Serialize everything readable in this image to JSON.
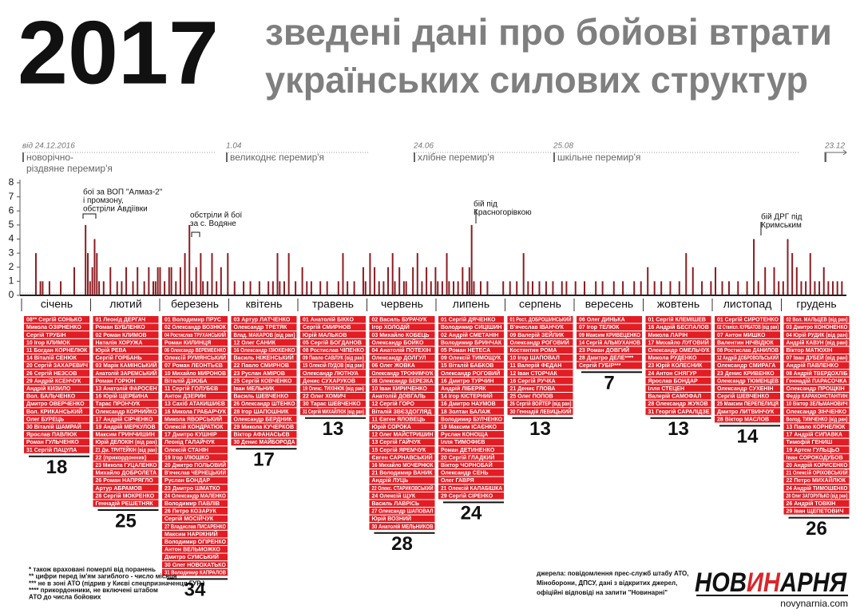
{
  "title": "2017",
  "subtitle": [
    "зведені дані про бойові втрати",
    "українських силових структур"
  ],
  "truces": [
    {
      "date": "від 24.12.2016",
      "label": [
        "новорічно-",
        "різдвяне перемир'я"
      ]
    },
    {
      "date": "1.04",
      "label": [
        "великоднє перемир'я"
      ]
    },
    {
      "date": "24.06",
      "label": [
        "хлібне перемир'я"
      ]
    },
    {
      "date": "25.08",
      "label": [
        "шкільне перемир'я"
      ]
    },
    {
      "date": "23.12",
      "label": []
    }
  ],
  "annotations": [
    [
      "бої за ВОП \"Алмаз-2\"",
      "і промзону,",
      "обстріли Авдіївки"
    ],
    [
      "обстріли й бої",
      "за с. Водяне"
    ],
    [
      "бій під",
      "Красногорівкою"
    ],
    [
      "бій ДРГ під",
      "Кримським"
    ]
  ],
  "chart_data": {
    "type": "bar",
    "color": "#8b1c22",
    "x": [
      7,
      9,
      10,
      13,
      18,
      24,
      29,
      30,
      31,
      32,
      33,
      34,
      35,
      37,
      40,
      43,
      45,
      47,
      50,
      52,
      55,
      57,
      59,
      60,
      61,
      62,
      64,
      66,
      67,
      69,
      71,
      73,
      75,
      76,
      78,
      80,
      81,
      83,
      85,
      87,
      89,
      92,
      95,
      99,
      102,
      106,
      110,
      112,
      114,
      115,
      117,
      119,
      122,
      125,
      127,
      129,
      133,
      136,
      141,
      143,
      145,
      148,
      152,
      153,
      155,
      157,
      159,
      161,
      163,
      165,
      166,
      168,
      170,
      171,
      174,
      176,
      178,
      180,
      182,
      184,
      185,
      187,
      189,
      190,
      192,
      194,
      196,
      198,
      199,
      200,
      201,
      204,
      207,
      214,
      217,
      220,
      223,
      225,
      227,
      230,
      233,
      236,
      240,
      242,
      246,
      250,
      255,
      258,
      263,
      267,
      272,
      275,
      278,
      281,
      284,
      288,
      292,
      295,
      298,
      302,
      306,
      308,
      311,
      314,
      318,
      322,
      325,
      327,
      330,
      334,
      336,
      338,
      340,
      342,
      344,
      346,
      348,
      350,
      352,
      354,
      356,
      358,
      360,
      362,
      364
    ],
    "values": [
      3,
      1,
      1,
      1,
      1,
      2,
      5,
      3,
      1,
      2,
      4,
      3,
      1,
      1,
      2,
      1,
      1,
      2,
      1,
      2,
      1,
      2,
      1,
      1,
      2,
      2,
      1,
      2,
      2,
      1,
      2,
      3,
      5,
      1,
      2,
      3,
      1,
      1,
      3,
      1,
      2,
      3,
      1,
      1,
      1,
      1,
      1,
      1,
      3,
      1,
      1,
      3,
      1,
      2,
      1,
      1,
      1,
      1,
      1,
      3,
      1,
      1,
      2,
      1,
      3,
      2,
      1,
      1,
      2,
      3,
      1,
      2,
      1,
      1,
      2,
      3,
      1,
      2,
      1,
      2,
      1,
      1,
      3,
      1,
      1,
      1,
      2,
      1,
      2,
      5,
      1,
      1,
      1,
      1,
      1,
      1,
      3,
      1,
      1,
      1,
      1,
      1,
      1,
      1,
      1,
      1,
      1,
      1,
      1,
      1,
      1,
      1,
      2,
      1,
      1,
      1,
      1,
      3,
      2,
      1,
      1,
      2,
      1,
      1,
      1,
      1,
      4,
      1,
      2,
      2,
      1,
      1,
      4,
      3,
      2,
      1,
      1,
      3,
      1,
      1,
      2,
      1,
      1,
      1,
      1
    ],
    "xlim": [
      1,
      366
    ],
    "ylim": [
      0,
      8
    ],
    "yticks": [
      0,
      1,
      2,
      3,
      4,
      5,
      6,
      7,
      8
    ]
  },
  "months": [
    {
      "name": "січень",
      "total": 18,
      "names": [
        "08** Сергій СОНЬКО",
        "Микола ОЗІРНЕНКО",
        "Сергій ТРУБІН",
        "10 Ігор КЛИМОК",
        "11 Богдан КОРНЕЛЮК",
        "14 Віталій СЕНЮК",
        "20 Сергій ЗАХАРЕВИЧ",
        "26 Сергій НЕЗСОВ",
        "29 Андрій КСЕНЧУК",
        "Андрій КИЗИЛО",
        "Вол. БАЛЬЧЕНКО",
        "Дмитро ОВЕРЧЕНКО",
        "Вол. КРИКАНСЬКИЙ",
        "Олег БУРЕЦЬ",
        "30 Віталій ШАМРАЙ",
        "Ярослав ПАВЛЮК",
        "Роман ГУЛЬЧЕНКО",
        "31 Сергій ПАЦУЛА"
      ]
    },
    {
      "name": "лютий",
      "total": 25,
      "names": [
        "01 Леонід ДЕРГАЧ",
        "Роман БУБЛЕНКО",
        "02 Роман КЛИМОВ",
        "Наталія ХОРУЖА",
        "Юрій РЕВА",
        "Сергій ГОРБАНЬ",
        "03 Марік КАМІНСЬКИЙ",
        "Анатолій ЗАРЕМСЬКИЙ",
        "Роман ГОРЮН",
        "13 Анатолій ФАРОСЕН",
        "16 Юрій ЩЕРБИНА",
        "Тарас ПРОНЧУК",
        "Олександр КОРНИЙКО",
        "17 Андрій СІРЧЕНКО",
        "19 Андрій МЕРКУЛОВ",
        "Максим ГРИНЧИШИН",
        "Юрій ДЕЛОКІН (від ран)",
        "21 Дм. ТРИТЕЙКІН (від ран)",
        "22 (прикордонник)",
        "23 Микола ГУЦАЛЕНКО",
        "Михайло ДОБРОЛЕТА",
        "26 Роман НАПРЯГЛО",
        "Артур АБРАМОВ",
        "28 Сергій МОКРЕНКО",
        "Геннадій РЕШЕТНЯК"
      ]
    },
    {
      "name": "березень",
      "total": 34,
      "names": [
        "01 Володимир ПРУС",
        "02 Олександр ВОЗНЮК",
        "04 Ростислав ТРУХАНСЬКИЙ",
        "Роман КИЛИНЦЯ",
        "06 Олександр ВЕРЕМЕЄНКО",
        "Олексій РУМЯНСЬКИЙ",
        "07 Роман ЛЕОНТЬЄВ",
        "10 Михайло МИРОНОВ",
        "Віталій ДЗЮБА",
        "11 Сергій ГОЛУБЄВ",
        "Антон ДЗЕРИН",
        "13 Сахіб АТАКИШИЄВ",
        "16 Микола ГРАБАРЧУК",
        "Микола ЯВОРСЬКИЙ",
        "Олексій КОНДРАТЮК",
        "17 Дмитро КУШНІР",
        "Леонід ГАЛАЙЧУК",
        "Олексій СТАНІН",
        "19 Ігор ІЛЮШКО",
        "20 Дмитро ПОЛЬОВИЙ",
        "В'ячеслав ЧЕРНЕЦЬКИЙ",
        "Руслан БОНДАР",
        "23 Дмитро ШМАТКО",
        "24 Олександр МАЛЕНКО",
        "Володимир ПАВЛІВ",
        "26 Петро КОЗАРУК",
        "Сергій МОСІЙЧУК",
        "27 Владислав ПИСАРЕНКО",
        "Максим НАРІЖНИЙ",
        "Володимир ОГІРЕНКО",
        "Антон ВЕЛЬМОЖКО",
        "Дмитро СУМСЬКИЙ",
        "30 Олег НОВОХАТЬКО",
        "31 Володимир КАПРАЛОВ"
      ]
    },
    {
      "name": "квітень",
      "total": 17,
      "names": [
        "03 Артур ЛАТЧЕНКО",
        "Олександр ТРЕТЯК",
        "Влад. МАКАРОВ (від ран)",
        "12 Олег САНИК",
        "16 Олександр ІЗЮКЕНКО",
        "Василь НІЖЕНСЬКИЙ",
        "22 Павло СМИРНОВ",
        "23 Руслан АМІРОВ",
        "25 Сергій КОВЧЕНКО",
        "Іван МЕЛЬНИК",
        "Василь ШЕВЧЕНКО",
        "26 Олександр ШТЕНКО",
        "28 Ігор ШАПОШНИК",
        "Олександр БЕРДНИК",
        "29 Микола КУЧЕРКОВ",
        "Віктор АФАНАСЬЄВ",
        "30 Денис МАЙБОРОДА"
      ]
    },
    {
      "name": "травень",
      "total": 13,
      "names": [
        "01 Анатолій БІККО",
        "Сергій СМИРНОВ",
        "Юрій МАЛЬКОВ",
        "05 Сергій БОГДАНОВ",
        "08 Ростислав ЧІПЕНКО",
        "09 Павло САВЛУК (від ран)",
        "15 Олексій ПУДОВ (від ран)",
        "Олександр ЛЮТНУА",
        "Денис СУХАРУКОВ",
        "19 Олекс. ТИХІНЮК (від ран)",
        "22 Олег ХОМИЧ",
        "30 Тарас ШЕВЧЕНКО",
        "31 Сергій МИХАЙЛЮК (від ран)"
      ]
    },
    {
      "name": "червень",
      "total": 28,
      "names": [
        "02 Василь БУРАЧУК",
        "Ігор ХОЛОДІЙ",
        "03 Михайло КОБЕЦЬ",
        "Олександр БОЙКО",
        "04 Анатолій ПОТЕХІН",
        "Олександр ДОЛГУЛ",
        "06 Олег ЖОВКА",
        "Олександр ТРОФИМЧУК",
        "08 Олександр БЕРЕЗКА",
        "10 Іван КИРИЧЕНКО",
        "Анатолій ДОВГАЛЬ",
        "12 Сергій ГОРО",
        "Віталій ЗВЄЗДОГЛЯД",
        "11 Євген ЯЛОВЕЦЬ",
        "Юрій СОРОКА",
        "12 Олег МАЙСТРИШИН",
        "13 Сергій ГАЙЧУК",
        "15 Сергій ЯРЕМЧУК",
        "Євген САРНАВСЬКИЙ",
        "16 Михайло МОЧЕРНЮК",
        "21 Володимир ВАНИК",
        "Андрій ЛУЦЬ",
        "22 Олекс. СТАРИКОВСЬКИЙ",
        "24 Олексій ЩУК",
        "Василь ЛАВРІСЬ",
        "27 Олександр ШАПОВАЛ",
        "Юрій ВОЗНИЙ",
        "30 Анатолій МЕЛЬНИКОВ"
      ]
    },
    {
      "name": "липень",
      "total": 24,
      "names": [
        "01 Сергій ДЯЧЕНКО",
        "Володимир СИЦІШИН",
        "02 Андрій СМЕТАНІН",
        "Володимир БРИНЧАК",
        "05 Роман НЕТЕСА",
        "09 Олексій ТИМОЩУК",
        "15 Віталій БАБКОВ",
        "Олександр РОГОВИЙ",
        "16 Дмитро ТУРЧИН",
        "Андрій ЛІБЕРЯК",
        "14 Ігор КІСТЕРНИЙ",
        "16 Дмитро НАУМОВ",
        "18 Золтан БАЛАЖ",
        "Володимир БУЛЧЕНКО",
        "19 Максим ІСАЄНКО",
        "Руслан КОНОЩА",
        "Ілля ТИМОФІЄВ",
        "Роман ДЕТИНЕНКО",
        "20 Сергій ГЛАДКИЙ",
        "Віктор ЧОРНОБАЙ",
        "Олександр СЕНЬ",
        "Олег ГАВРЯ",
        "21 Олексій КАЛАБІШКА",
        "29 Сергій СІРЕНКО"
      ]
    },
    {
      "name": "серпень",
      "total": 13,
      "names": [
        "01 Рост. ДОБРОШИНСЬКИЙ",
        "В'ячеслав ІВАНЧУК",
        "09 Валерій ЗЕЙЛИК",
        "Олександр РОГОВИЙ",
        "Костянтин РОМА",
        "10 Ігор ШАПОВАЛ",
        "11 Валерій ФЕДАН",
        "12 Іван СТОРЧАК",
        "16 Сергій РУЧКА",
        "21 Денис ГЛОВА",
        "25 Олег ПОПОВ",
        "26 Сергій ВОЙТЕР (від ран)",
        "30 Геннадій ЛЕВИЦЬКИЙ"
      ]
    },
    {
      "name": "вересень",
      "total": 7,
      "names": [
        "06 Олег ДИНЬКА",
        "07 Ігор ТЕЛЮК",
        "09 Максим КРИВЕЦЕНКО",
        "14 Сергій АЛЬМУХАНОВ",
        "23 Роман ДОВГИЙ",
        "28 Дмитро ДЕЛЕ****",
        "Сергій ГУБІР***"
      ]
    },
    {
      "name": "жовтень",
      "total": 13,
      "names": [
        "01 Сергій КЛЕМІШЕВ",
        "16 Андрій БЕСПАЛОВ",
        "Микола ЛАРІН",
        "17 Михайло ЛУГОВИЙ",
        "Олександр ОМЕЛЬЧУК",
        "Микола РУДЕНКО",
        "23 Юрій КОЛЕСНИК",
        "24 Антон СНЯГУР",
        "Ярослав БОНДАР",
        "Ілля СТЕЦЕН",
        "Валерій САМОФАЛ",
        "28 Олександр ЖУКОВ",
        "31 Георгій САРАЛІДЗЕ"
      ]
    },
    {
      "name": "листопад",
      "total": 14,
      "names": [
        "01 Сергій СИРОТЕНКО",
        "02 Станісл. КУРБАТОВ (від ран)",
        "07 Антон МИШКО",
        "Валентин НІЧВІДЮК",
        "08 Ростислав ДАНИЛОВ",
        "12 Андрій ДОБРОВОЛЬСЬКИЙ",
        "Олександр СМИРАГА",
        "23 Денис КРИВЕНКО",
        "Олександр ТЮМЕНЦЕВ",
        "Олександр СУХЕНІН",
        "Сергій ШЕВЧЕНКО",
        "25 Максим ПЕРЕПЕЛИЦЯ",
        "Дмитро ЛИТВИНЧУК",
        "28 Віктор МАСЛОВ"
      ]
    },
    {
      "name": "грудень",
      "total": 26,
      "names": [
        "02 Вол. МАЛЬЦЕВ (від ран)",
        "03 Дмитро КОНОНЕНКО",
        "04 Юрій РУДИК (від ран)",
        "Андрій КАВУН (від ран)",
        "Віктор МАТЮХІН",
        "07 Іван ДУБЕЙ (від ран)",
        "Андрій ПАВЛЕНКО",
        "08 Андрій ТВЕРДОХЛІБ",
        "Геннадій ПАРАСОЧКА",
        "Олександр ПРОЩКІН",
        "Федір КАРАКОНСТАНТИН",
        "10 Віктор ЗЕЛЬМАНОВИЧ",
        "Олександр ЗІНЧЕНКО",
        "Волод. ТИМЧЕНКО (від ран)",
        "13 Павло КОРНЕЛЮК",
        "17 Андрій СИПАВКА",
        "Тимофій ГЕНИШ",
        "19 Артем ГУЛЬЦЬО",
        "Іван СОРОКОДУБОВ",
        "20 Андрій КОРИСЕНКО",
        "21 Олексій ОРІХОВСЬКИЙ",
        "22 Петро МИХАЙЛЮК",
        "24 Андрій ТИМОШЕНКО",
        "28 Олег ЗАГОРУЛЬКО (від ран)",
        "26 Андрій ТОВКІН",
        "29 Іван ЩЕПЕТОВИЧ"
      ]
    }
  ],
  "footnotes": [
    "* також враховані померлі від поранень",
    "** цифри перед ім'ям загиблого - число місяця",
    "*** не в зоні АТО (підрив у Києві спецпризначенця ГУР )",
    "**** прикордонники, не включені штабом",
    "АТО до числа бойових"
  ],
  "sources": [
    "джерела: повідомлення прес-служб штабу АТО,",
    "Міноборони, ДПСУ, дані з відкритих джерел,",
    "офіційні відповіді на запити \"Новинарні\""
  ],
  "logo": {
    "parts": [
      "НОВ",
      "ИН",
      "АРНЯ"
    ],
    "url": "novynarnia.com"
  }
}
